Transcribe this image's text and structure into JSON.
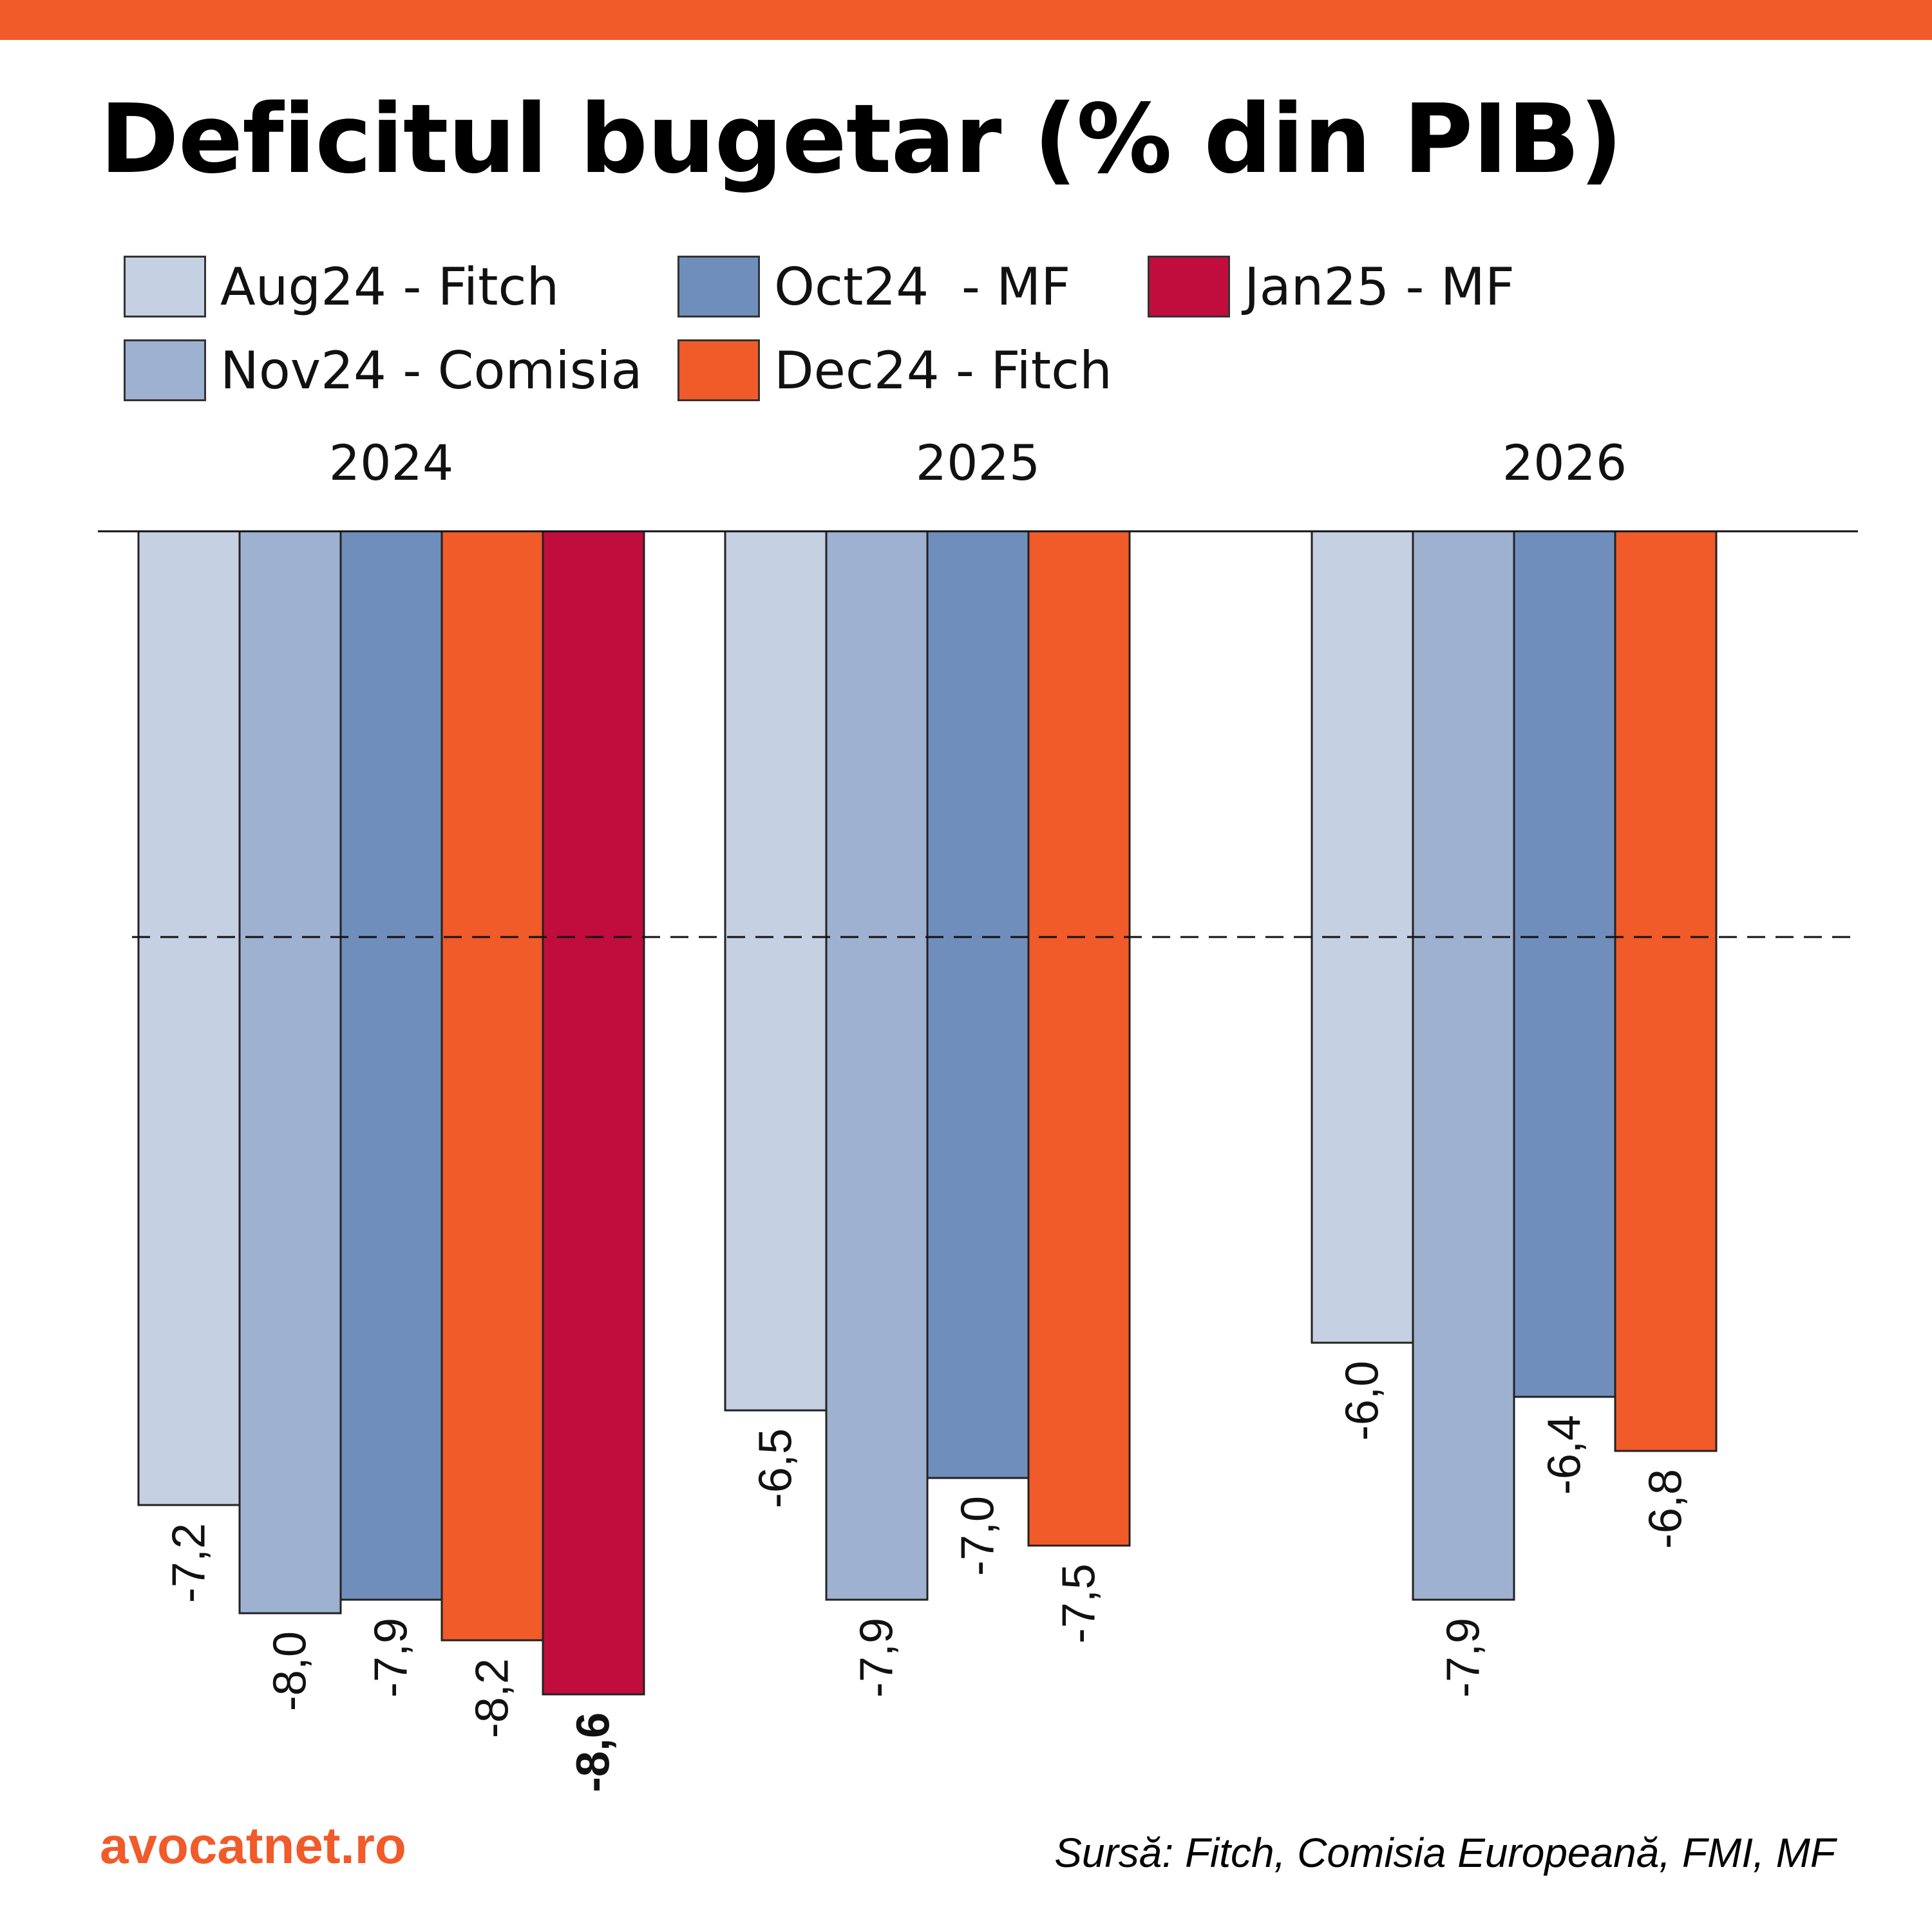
{
  "title": "Deficitul bugetar (% din PIB)",
  "brand": "avocatnet.ro",
  "source": "Sursă: Fitch, Comisia Europeană, FMI, MF",
  "colors": {
    "accent": "#F15A29",
    "aug24_fitch": "#C5D0E2",
    "nov24_comisia": "#9FB1D0",
    "oct24_mf": "#6F8EBB",
    "dec24_fitch": "#F15A29",
    "jan25_mf": "#C00D3D"
  },
  "legend": [
    {
      "label": "Aug24 - Fitch",
      "color": "#C5D0E2"
    },
    {
      "label": "Oct24  - MF",
      "color": "#6F8EBB"
    },
    {
      "label": "Jan25 - MF",
      "color": "#C00D3D"
    },
    {
      "label": "Nov24 - Comisia",
      "color": "#9FB1D0"
    },
    {
      "label": "Dec24 - Fitch",
      "color": "#F15A29"
    }
  ],
  "chart_data": {
    "type": "bar",
    "categories": [
      "2024",
      "2025",
      "2026"
    ],
    "series": [
      {
        "name": "Aug24 - Fitch",
        "color": "#C5D0E2",
        "values": [
          -7.2,
          -6.5,
          -6.0
        ],
        "labels": [
          "-7,2",
          "-6,5",
          "-6,0"
        ]
      },
      {
        "name": "Nov24 - Comisia",
        "color": "#9FB1D0",
        "values": [
          -8.0,
          -7.9,
          -7.9
        ],
        "labels": [
          "-8,0",
          "-7,9",
          "-7,9"
        ]
      },
      {
        "name": "Oct24  - MF",
        "color": "#6F8EBB",
        "values": [
          -7.9,
          -7.0,
          -6.4
        ],
        "labels": [
          "-7,9",
          "-7,0",
          "-6,4"
        ]
      },
      {
        "name": "Dec24 - Fitch",
        "color": "#F15A29",
        "values": [
          -8.2,
          -7.5,
          -6.8
        ],
        "labels": [
          "-8,2",
          "-7,5",
          "-6,8"
        ]
      },
      {
        "name": "Jan25 - MF",
        "color": "#C00D3D",
        "values": [
          -8.6,
          null,
          null
        ],
        "labels": [
          "-8,6",
          null,
          null
        ],
        "bold_label": true
      }
    ],
    "reference_line": -3,
    "ylim": [
      -8.6,
      0
    ],
    "grid": false,
    "legend_position": "top-left"
  }
}
